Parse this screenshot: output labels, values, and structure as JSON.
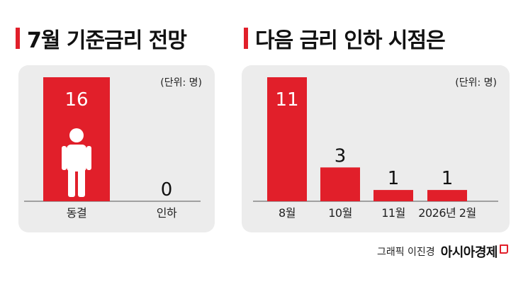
{
  "colors": {
    "accent": "#e11f2a",
    "panel": "#ececec",
    "text": "#111111"
  },
  "left": {
    "title": "7월 기준금리 전망",
    "unit": "(단위: 명)"
  },
  "right": {
    "title": "다음 금리 인하 시점은",
    "unit": "(단위: 명)"
  },
  "footer": {
    "credit": "그래픽 이진경",
    "brand": "아시아경제"
  },
  "chart_data": [
    {
      "type": "bar",
      "title": "7월 기준금리 전망",
      "unit": "(단위: 명)",
      "categories": [
        "동결",
        "인하"
      ],
      "values": [
        16,
        0
      ],
      "icon": "person-icon",
      "grid": false
    },
    {
      "type": "bar",
      "title": "다음 금리 인하 시점은",
      "unit": "(단위: 명)",
      "categories": [
        "8월",
        "10월",
        "11월",
        "2026년 2월"
      ],
      "values": [
        11,
        3,
        1,
        1
      ],
      "grid": false
    }
  ]
}
